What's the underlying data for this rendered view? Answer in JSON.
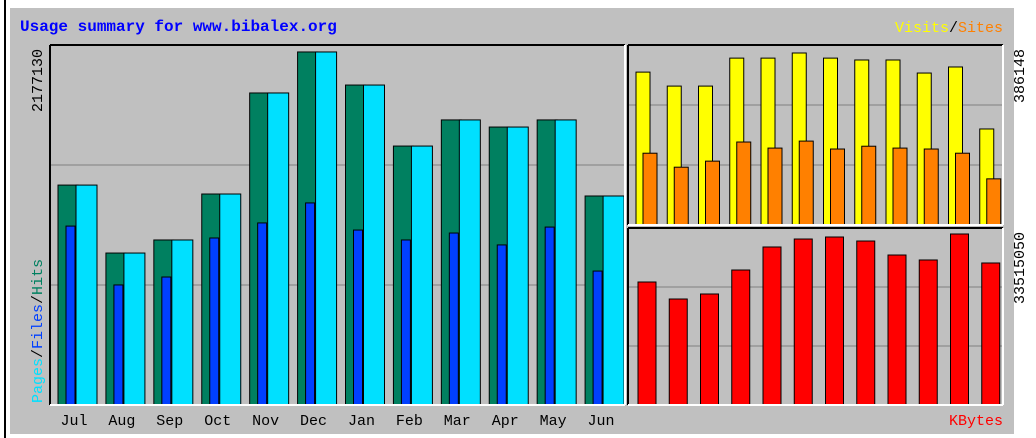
{
  "chart_data": [
    {
      "type": "bar",
      "title": "Usage summary for www.bibalex.org",
      "legend_separator": "/",
      "categories": [
        "Jul",
        "Aug",
        "Sep",
        "Oct",
        "Nov",
        "Dec",
        "Jan",
        "Feb",
        "Mar",
        "Apr",
        "May",
        "Jun"
      ],
      "series": [
        {
          "name": "Pages",
          "color": "#00e0ff",
          "values": [
            1330000,
            919000,
            998000,
            1276000,
            1887000,
            2135000,
            1935000,
            1566000,
            1724000,
            1681000,
            1724000,
            1264000
          ]
        },
        {
          "name": "Files",
          "color": "#0040ff",
          "values": [
            1082000,
            726000,
            774000,
            1010000,
            1101000,
            1222000,
            1058000,
            998000,
            1040000,
            968000,
            1076000,
            810000
          ]
        },
        {
          "name": "Hits",
          "color": "#008060",
          "values": [
            1330000,
            919000,
            998000,
            1276000,
            1887000,
            2135000,
            1935000,
            1566000,
            1724000,
            1681000,
            1724000,
            1264000
          ]
        }
      ],
      "ylim": [
        0,
        2177130
      ],
      "yticks": [
        2177130
      ]
    },
    {
      "type": "bar",
      "legend_separator": "/",
      "series": [
        {
          "name": "Visits",
          "color": "#ffff00",
          "values": [
            328000,
            298000,
            298000,
            358000,
            358000,
            369000,
            358000,
            354000,
            354000,
            326000,
            339000,
            206000
          ]
        },
        {
          "name": "Sites",
          "color": "#ff8000",
          "values": [
            154000,
            124000,
            137000,
            178000,
            165000,
            180000,
            163000,
            169000,
            165000,
            163000,
            154000,
            99000
          ]
        }
      ],
      "ylim": [
        0,
        386148
      ],
      "yticks": [
        386148
      ]
    },
    {
      "type": "bar",
      "series": [
        {
          "name": "KBytes",
          "color": "#ff0000",
          "values": [
            23290000,
            20070000,
            21020000,
            25560000,
            29920000,
            31430000,
            31810000,
            31050000,
            28400000,
            27460000,
            32380000,
            26890000
          ]
        }
      ],
      "ylim": [
        0,
        33515050
      ],
      "yticks": [
        33515050
      ]
    }
  ]
}
